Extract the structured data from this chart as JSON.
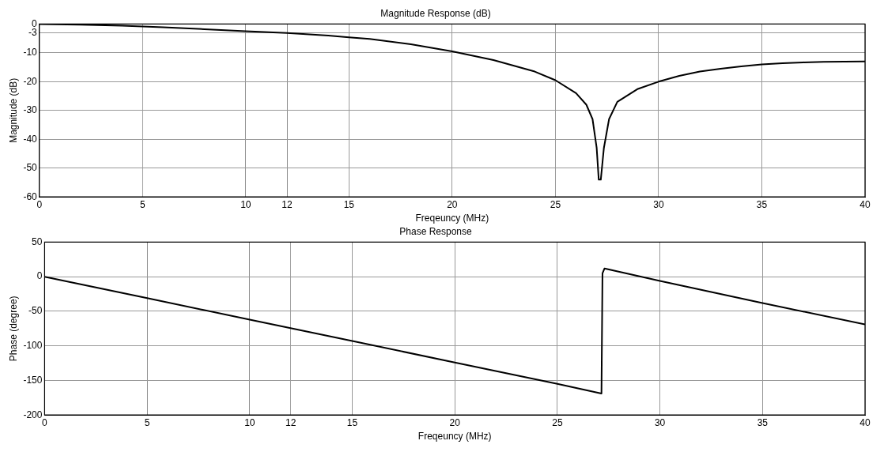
{
  "chart_data": [
    {
      "type": "line",
      "title": "Magnitude Response (dB)",
      "xlabel": "Freqeuncy (MHz)",
      "ylabel": "Magnitude (dB)",
      "xlim": [
        0,
        40
      ],
      "xticks": [
        0,
        5,
        10,
        12,
        15,
        20,
        25,
        30,
        35,
        40
      ],
      "ylim": [
        -60,
        0
      ],
      "yticks": [
        -60,
        -50,
        -40,
        -30,
        -20,
        -10,
        -3,
        0
      ],
      "grid": true,
      "legend": false,
      "marker": "none",
      "line_style": "solid",
      "series": [
        {
          "color": "#000000",
          "x": [
            0,
            2,
            4,
            6,
            8,
            10,
            12,
            14,
            15,
            16,
            18,
            20,
            22,
            24,
            25,
            26,
            26.5,
            26.8,
            27,
            27.1,
            27.2,
            27.35,
            27.6,
            28,
            29,
            30,
            31,
            32,
            33,
            34,
            35,
            36,
            37,
            38,
            40
          ],
          "values": [
            0,
            -0.2,
            -0.6,
            -1.1,
            -1.8,
            -2.5,
            -3.1,
            -4,
            -4.6,
            -5.2,
            -7,
            -9.5,
            -12.5,
            -16.5,
            -19.5,
            -24,
            -28,
            -33,
            -43,
            -54,
            -54,
            -43,
            -33,
            -27,
            -22.5,
            -20,
            -18,
            -16.5,
            -15.5,
            -14.7,
            -14,
            -13.6,
            -13.3,
            -13.1,
            -13
          ]
        }
      ]
    },
    {
      "type": "line",
      "title": "Phase Response",
      "xlabel": "Freqeuncy (MHz)",
      "ylabel": "Phase (degree)",
      "xlim": [
        0,
        40
      ],
      "xticks": [
        0,
        5,
        10,
        12,
        15,
        20,
        25,
        30,
        35,
        40
      ],
      "ylim": [
        -200,
        50
      ],
      "yticks": [
        -200,
        -150,
        -100,
        -50,
        0,
        50
      ],
      "grid": true,
      "legend": false,
      "marker": "none",
      "line_style": "solid",
      "series": [
        {
          "color": "#000000",
          "x": [
            0,
            5,
            10,
            15,
            20,
            25,
            27.15,
            27.2,
            27.3,
            30,
            35,
            40
          ],
          "values": [
            0,
            -31,
            -62,
            -93,
            -124,
            -155,
            -169,
            5,
            12,
            -6,
            -38,
            -69
          ]
        }
      ]
    }
  ]
}
